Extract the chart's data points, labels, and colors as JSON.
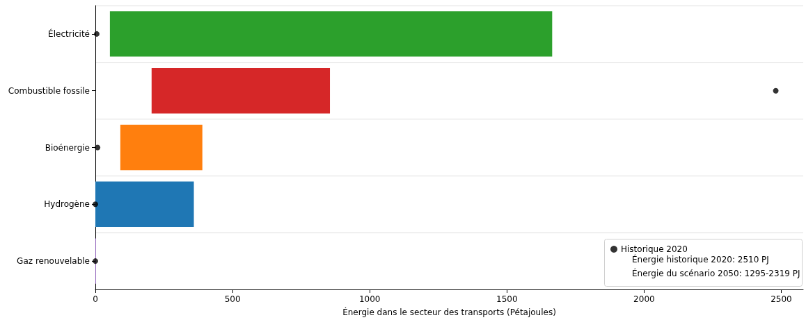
{
  "chart_data": {
    "type": "bar",
    "orientation": "horizontal",
    "xlabel": "Énergie dans le secteur des transports (Pétajoules)",
    "categories": [
      "Électricité",
      "Combustible fossile",
      "Bioénergie",
      "Hydrogène",
      "Gaz renouvelable"
    ],
    "series": [
      {
        "base": [
          53,
          205,
          91,
          0,
          0
        ],
        "values": [
          1612,
          650,
          299,
          359,
          1
        ],
        "colors": [
          "#2ca02c",
          "#d62728",
          "#ff7f0e",
          "#1f77b4",
          "#9467bd"
        ]
      },
      {
        "type": "scatter",
        "name": "Historique 2020",
        "color": "#000000",
        "values": [
          5,
          2480,
          8,
          0,
          0
        ]
      }
    ],
    "marker": "circle",
    "annotations": [
      "Énergie historique 2020: 2510 PJ",
      "Énergie du scénario 2050: 1295-2319 PJ"
    ],
    "xlim": [
      0,
      2580
    ],
    "xticks": [
      0,
      500,
      1000,
      1500,
      2000,
      2500
    ],
    "grid": "y",
    "legend": "bottom right"
  }
}
